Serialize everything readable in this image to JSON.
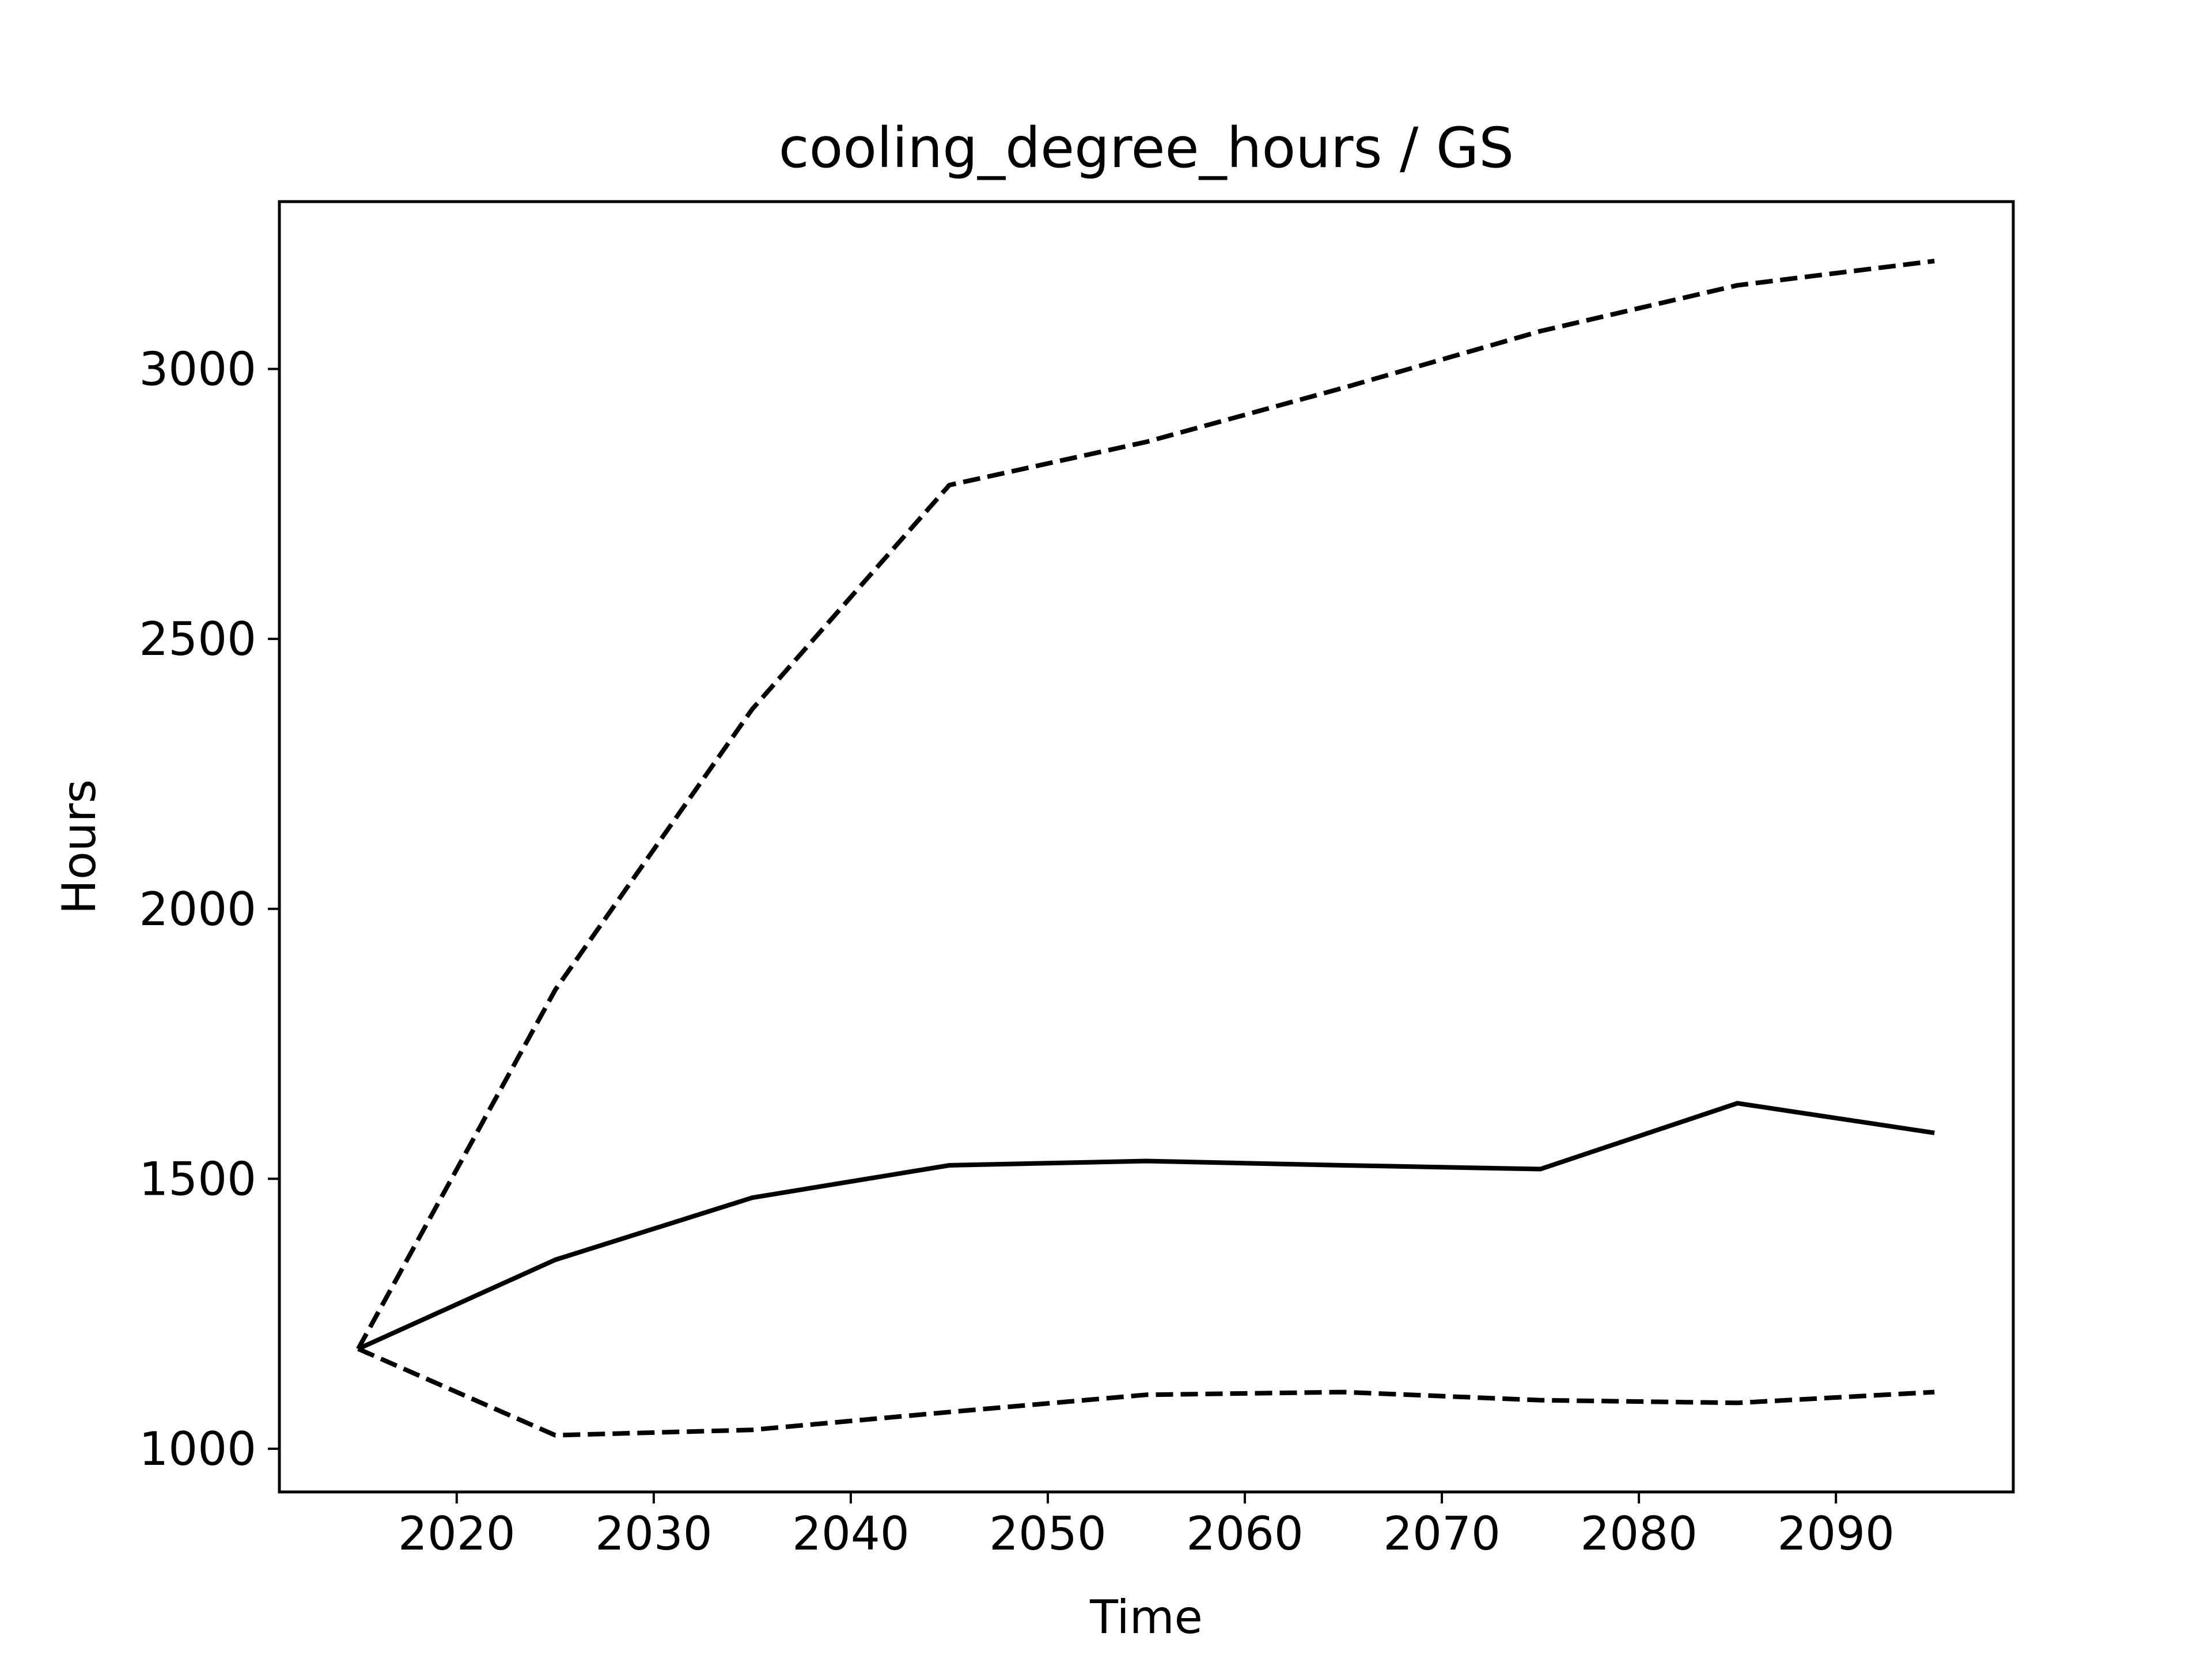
{
  "chart_data": {
    "type": "line",
    "title": "cooling_degree_hours / GS",
    "xlabel": "Time",
    "ylabel": "Hours",
    "xlim": [
      2011,
      2099
    ],
    "ylim": [
      920,
      3310
    ],
    "xticks": [
      2020,
      2030,
      2040,
      2050,
      2060,
      2070,
      2080,
      2090
    ],
    "yticks": [
      1000,
      1500,
      2000,
      2500,
      3000
    ],
    "grid": false,
    "legend": "none",
    "series": [
      {
        "style": "solid",
        "color": "#000000",
        "x": [
          2015,
          2025,
          2035,
          2045,
          2055,
          2065,
          2075,
          2085,
          2095
        ],
        "y": [
          1185,
          1350,
          1465,
          1525,
          1533,
          1525,
          1518,
          1640,
          1585
        ]
      },
      {
        "style": "dashed",
        "color": "#000000",
        "x": [
          2015,
          2025,
          2035,
          2045,
          2055,
          2065,
          2075,
          2085,
          2095
        ],
        "y": [
          1185,
          1850,
          2370,
          2785,
          2865,
          2965,
          3070,
          3155,
          3200
        ]
      },
      {
        "style": "dashed",
        "color": "#000000",
        "x": [
          2015,
          2025,
          2035,
          2045,
          2055,
          2065,
          2075,
          2085,
          2095
        ],
        "y": [
          1185,
          1025,
          1035,
          1068,
          1100,
          1105,
          1090,
          1085,
          1105
        ]
      }
    ]
  }
}
